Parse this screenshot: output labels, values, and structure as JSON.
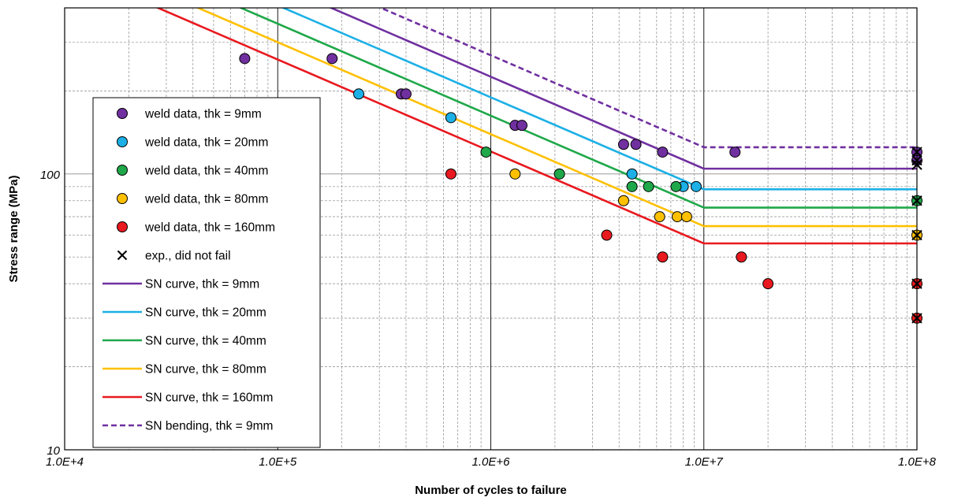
{
  "chart_data": {
    "type": "scatter",
    "title": "",
    "xlabel": "Number of cycles to failure",
    "ylabel": "Stress range (MPa)",
    "x_scale": "log",
    "y_scale": "log",
    "xlim": [
      10000,
      100000000
    ],
    "ylim": [
      10,
      400
    ],
    "x_ticks": [
      10000,
      100000,
      1000000,
      10000000,
      100000000
    ],
    "x_tick_labels": [
      "1.0E+4",
      "1.0E+5",
      "1.0E+6",
      "1.0E+7",
      "1.0E+8"
    ],
    "y_ticks": [
      10,
      100
    ],
    "y_tick_labels": [
      "10",
      "100"
    ],
    "grid": true,
    "legend_position": "left",
    "series": [
      {
        "name": "weld data, thk = 9mm",
        "kind": "points",
        "marker": "circle",
        "color": "#7030A0",
        "x": [
          70000,
          180000,
          380000,
          400000,
          1300000,
          1400000,
          4200000,
          4800000,
          6400000,
          14000000,
          100000000,
          100000000
        ],
        "y": [
          262,
          262,
          195,
          195,
          150,
          150,
          128,
          128,
          120,
          120,
          120,
          112
        ]
      },
      {
        "name": "weld data, thk = 20mm",
        "kind": "points",
        "marker": "circle",
        "color": "#1CB0E6",
        "x": [
          240000,
          650000,
          4600000,
          8000000,
          9200000
        ],
        "y": [
          195,
          160,
          100,
          90,
          90
        ]
      },
      {
        "name": "weld data, thk = 40mm",
        "kind": "points",
        "marker": "circle",
        "color": "#1FA84A",
        "x": [
          950000,
          2100000,
          4600000,
          5500000,
          7400000,
          100000000
        ],
        "y": [
          120,
          100,
          90,
          90,
          90,
          80
        ]
      },
      {
        "name": "weld data, thk = 80mm",
        "kind": "points",
        "marker": "circle",
        "color": "#FFC000",
        "x": [
          1300000,
          4200000,
          6200000,
          7500000,
          8300000,
          100000000
        ],
        "y": [
          100,
          80,
          70,
          70,
          70,
          60
        ]
      },
      {
        "name": "weld data, thk = 160mm",
        "kind": "points",
        "marker": "circle",
        "color": "#E8191F",
        "x": [
          650000,
          3500000,
          6400000,
          15000000,
          20000000,
          100000000,
          100000000
        ],
        "y": [
          100,
          60,
          50,
          50,
          40,
          40,
          30
        ]
      },
      {
        "name": "exp., did not fail",
        "kind": "points",
        "marker": "x",
        "color": "#000000",
        "x": [
          100000000,
          100000000,
          100000000,
          100000000,
          100000000,
          100000000,
          100000000
        ],
        "y": [
          120,
          112,
          80,
          60,
          40,
          30,
          108
        ]
      },
      {
        "name": "SN curve, thk = 9mm",
        "kind": "line",
        "dash": false,
        "color": "#7030A0",
        "x": [
          10000,
          10000000,
          100000000
        ],
        "y": [
          1045,
          104.5,
          104.5
        ]
      },
      {
        "name": "SN curve, thk = 20mm",
        "kind": "line",
        "dash": false,
        "color": "#1CB0E6",
        "x": [
          10000,
          10000000,
          100000000
        ],
        "y": [
          880,
          88,
          88
        ]
      },
      {
        "name": "SN curve, thk = 40mm",
        "kind": "line",
        "dash": false,
        "color": "#1FA84A",
        "x": [
          10000,
          10000000,
          100000000
        ],
        "y": [
          755,
          75.5,
          75.5
        ]
      },
      {
        "name": "SN curve, thk = 80mm",
        "kind": "line",
        "dash": false,
        "color": "#FFC000",
        "x": [
          10000,
          10000000,
          100000000
        ],
        "y": [
          647,
          64.7,
          64.7
        ]
      },
      {
        "name": "SN curve, thk = 160mm",
        "kind": "line",
        "dash": false,
        "color": "#E8191F",
        "x": [
          10000,
          10000000,
          100000000
        ],
        "y": [
          560,
          56,
          56
        ]
      },
      {
        "name": "SN bending, thk = 9mm",
        "kind": "line",
        "dash": true,
        "color": "#7030A0",
        "x": [
          10000,
          10000000,
          100000000
        ],
        "y": [
          1250,
          125,
          125
        ]
      }
    ]
  }
}
